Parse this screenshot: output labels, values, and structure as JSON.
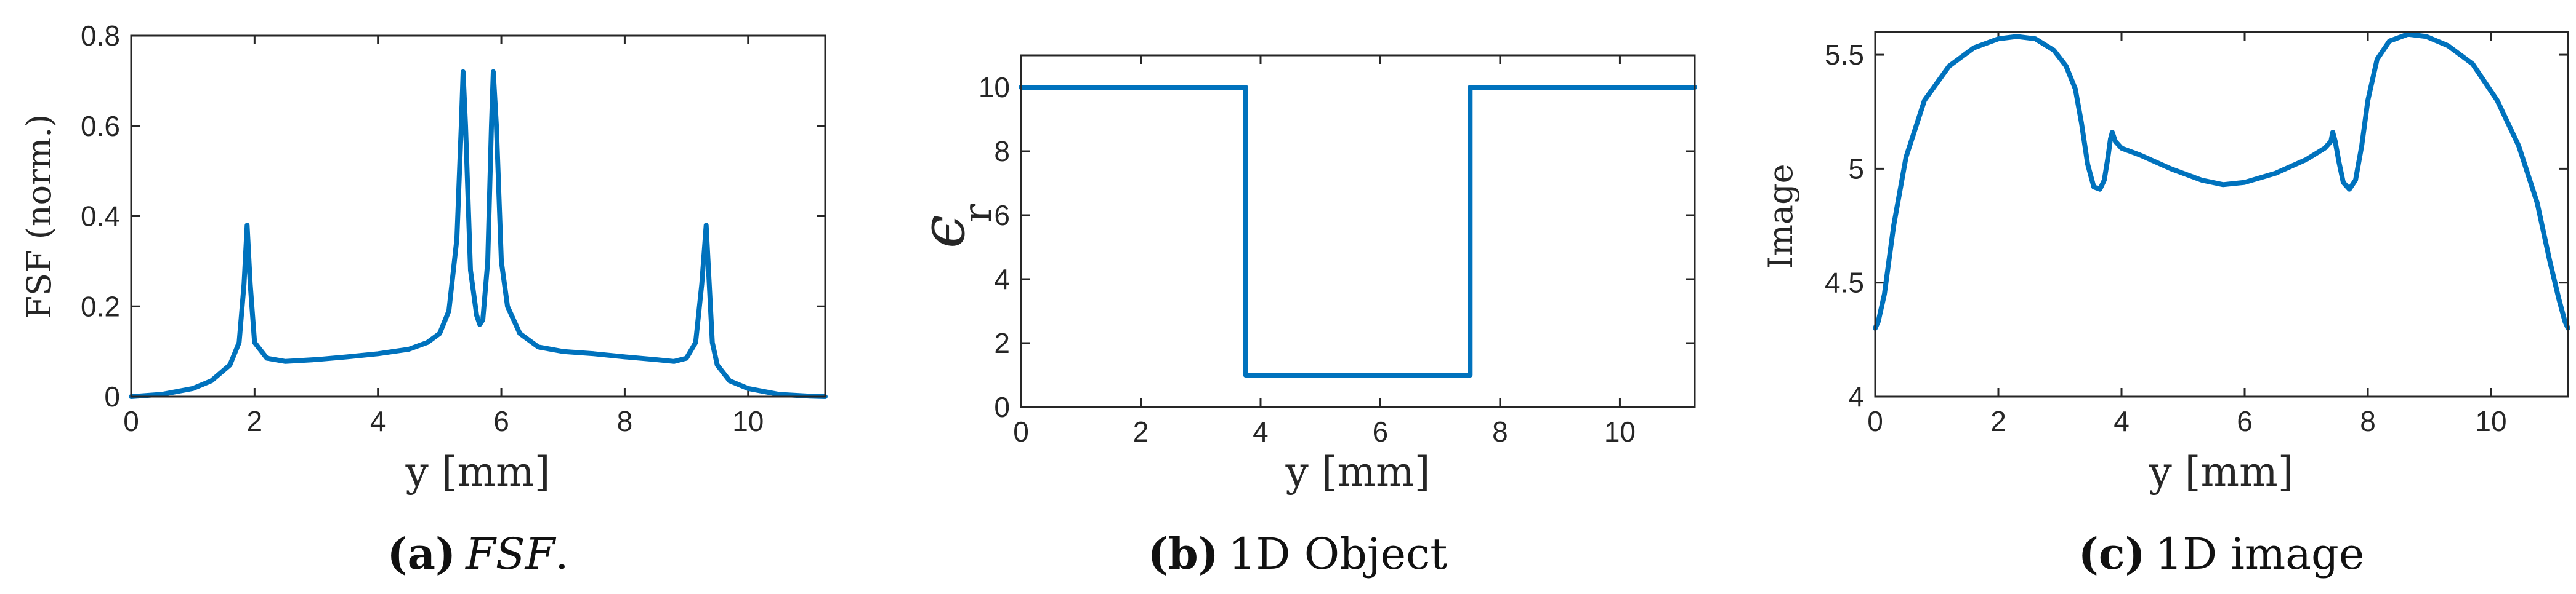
{
  "colors": {
    "series": "#0072BD",
    "axes": "#262626"
  },
  "chart_data": [
    {
      "type": "line",
      "panel": "a",
      "xlabel": "y [mm]",
      "ylabel": "FSF (norm.)",
      "xlim": [
        0,
        11.25
      ],
      "ylim": [
        0,
        0.8
      ],
      "xticks": [
        0,
        2,
        4,
        6,
        8,
        10
      ],
      "yticks": [
        0,
        0.2,
        0.4,
        0.6,
        0.8
      ],
      "ytick_labels": [
        "0",
        "0.2",
        "0.4",
        "0.6",
        "0.8"
      ],
      "caption": {
        "label": "(a)",
        "text": "FSF",
        "suffix": "."
      },
      "x": [
        0,
        0.5,
        1.0,
        1.3,
        1.6,
        1.75,
        1.83,
        1.88,
        1.93,
        2.0,
        2.2,
        2.5,
        3.0,
        3.5,
        4.0,
        4.5,
        4.8,
        5.0,
        5.15,
        5.28,
        5.35,
        5.38,
        5.42,
        5.5,
        5.6,
        5.65,
        5.7,
        5.78,
        5.84,
        5.87,
        5.92,
        6.0,
        6.1,
        6.3,
        6.6,
        7.0,
        7.5,
        8.0,
        8.5,
        8.8,
        9.0,
        9.15,
        9.25,
        9.32,
        9.37,
        9.42,
        9.5,
        9.7,
        10.0,
        10.5,
        11.0,
        11.25
      ],
      "y": [
        0,
        0.005,
        0.018,
        0.035,
        0.07,
        0.12,
        0.25,
        0.38,
        0.25,
        0.12,
        0.085,
        0.078,
        0.082,
        0.088,
        0.095,
        0.105,
        0.12,
        0.14,
        0.19,
        0.35,
        0.6,
        0.72,
        0.6,
        0.28,
        0.18,
        0.16,
        0.17,
        0.3,
        0.6,
        0.72,
        0.6,
        0.3,
        0.2,
        0.14,
        0.11,
        0.1,
        0.095,
        0.088,
        0.082,
        0.078,
        0.085,
        0.12,
        0.25,
        0.38,
        0.25,
        0.12,
        0.07,
        0.035,
        0.018,
        0.005,
        0.001,
        0
      ]
    },
    {
      "type": "line",
      "panel": "b",
      "xlabel": "y [mm]",
      "ylabel": "ϵ",
      "ylabel_sub": "r",
      "xlim": [
        0,
        11.25
      ],
      "ylim": [
        0,
        11
      ],
      "xticks": [
        0,
        2,
        4,
        6,
        8,
        10
      ],
      "yticks": [
        0,
        2,
        4,
        6,
        8,
        10
      ],
      "caption": {
        "label": "(b)",
        "text": "1D Object"
      },
      "x": [
        0,
        3.75,
        3.75,
        7.5,
        7.5,
        11.25
      ],
      "y": [
        10,
        10,
        1,
        1,
        10,
        10
      ]
    },
    {
      "type": "line",
      "panel": "c",
      "xlabel": "y [mm]",
      "ylabel": "Image",
      "xlim": [
        0,
        11.25
      ],
      "ylim": [
        4,
        5.6
      ],
      "xticks": [
        0,
        2,
        4,
        6,
        8,
        10
      ],
      "yticks": [
        4,
        4.5,
        5,
        5.5
      ],
      "ytick_labels": [
        "4",
        "4.5",
        "5",
        "5.5"
      ],
      "caption": {
        "label": "(c)",
        "text": "1D image"
      },
      "x": [
        0,
        0.05,
        0.15,
        0.3,
        0.5,
        0.8,
        1.2,
        1.6,
        2.0,
        2.3,
        2.6,
        2.9,
        3.1,
        3.25,
        3.35,
        3.45,
        3.55,
        3.65,
        3.72,
        3.78,
        3.82,
        3.85,
        3.9,
        4.0,
        4.3,
        4.8,
        5.3,
        5.65,
        6.0,
        6.5,
        7.0,
        7.3,
        7.4,
        7.43,
        7.47,
        7.53,
        7.6,
        7.7,
        7.8,
        7.9,
        8.0,
        8.15,
        8.35,
        8.65,
        8.95,
        9.3,
        9.7,
        10.1,
        10.45,
        10.75,
        10.95,
        11.1,
        11.2,
        11.25
      ],
      "y": [
        4.3,
        4.33,
        4.45,
        4.75,
        5.05,
        5.3,
        5.45,
        5.53,
        5.57,
        5.58,
        5.57,
        5.52,
        5.45,
        5.35,
        5.2,
        5.02,
        4.92,
        4.91,
        4.95,
        5.05,
        5.13,
        5.16,
        5.12,
        5.09,
        5.06,
        5.0,
        4.95,
        4.93,
        4.94,
        4.98,
        5.04,
        5.09,
        5.12,
        5.16,
        5.12,
        5.03,
        4.94,
        4.91,
        4.95,
        5.1,
        5.3,
        5.48,
        5.56,
        5.59,
        5.58,
        5.54,
        5.46,
        5.3,
        5.1,
        4.85,
        4.6,
        4.43,
        4.33,
        4.3
      ]
    }
  ]
}
